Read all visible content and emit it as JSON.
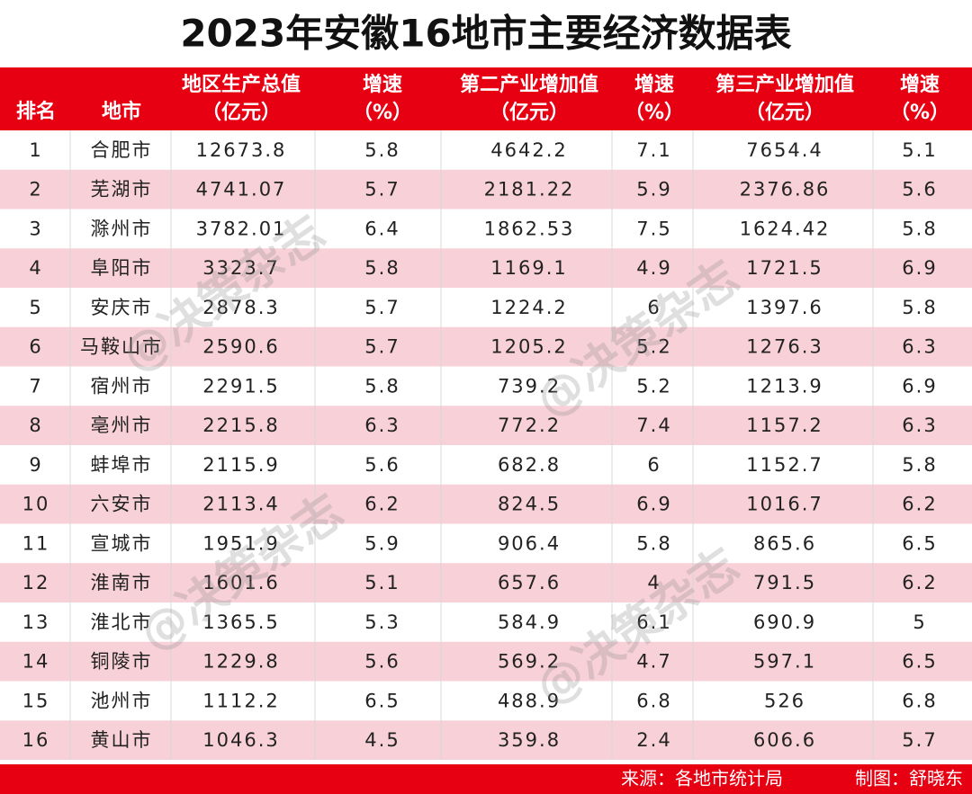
{
  "title": "2023年安徽16地市主要经济数据表",
  "table": {
    "headers": [
      [
        "排名"
      ],
      [
        "地市"
      ],
      [
        "地区生产总值",
        "（亿元）"
      ],
      [
        "增速",
        "（%）"
      ],
      [
        "第二产业增加值",
        "（亿元）"
      ],
      [
        "增速",
        "（%）"
      ],
      [
        "第三产业增加值",
        "（亿元）"
      ],
      [
        "增速",
        "（%）"
      ]
    ],
    "rows": [
      [
        1,
        "合肥市",
        12673.8,
        5.8,
        4642.2,
        7.1,
        7654.4,
        5.1
      ],
      [
        2,
        "芜湖市",
        4741.07,
        5.7,
        2181.22,
        5.9,
        2376.86,
        5.6
      ],
      [
        3,
        "滁州市",
        3782.01,
        6.4,
        1862.53,
        7.5,
        1624.42,
        5.8
      ],
      [
        4,
        "阜阳市",
        3323.7,
        5.8,
        1169.1,
        4.9,
        1721.5,
        6.9
      ],
      [
        5,
        "安庆市",
        2878.3,
        5.7,
        1224.2,
        6,
        1397.6,
        5.8
      ],
      [
        6,
        "马鞍山市",
        2590.6,
        5.7,
        1205.2,
        5.2,
        1276.3,
        6.3
      ],
      [
        7,
        "宿州市",
        2291.5,
        5.8,
        739.2,
        5.2,
        1213.9,
        6.9
      ],
      [
        8,
        "亳州市",
        2215.8,
        6.3,
        772.2,
        7.4,
        1157.2,
        6.3
      ],
      [
        9,
        "蚌埠市",
        2115.9,
        5.6,
        682.8,
        6,
        1152.7,
        5.8
      ],
      [
        10,
        "六安市",
        2113.4,
        6.2,
        824.5,
        6.9,
        1016.7,
        6.2
      ],
      [
        11,
        "宣城市",
        1951.9,
        5.9,
        906.4,
        5.8,
        865.6,
        6.5
      ],
      [
        12,
        "淮南市",
        1601.6,
        5.1,
        657.6,
        4,
        791.5,
        6.2
      ],
      [
        13,
        "淮北市",
        1365.5,
        5.3,
        584.9,
        6.1,
        690.9,
        5
      ],
      [
        14,
        "铜陵市",
        1229.8,
        5.6,
        569.2,
        4.7,
        597.1,
        6.5
      ],
      [
        15,
        "池州市",
        1112.2,
        6.5,
        488.9,
        6.8,
        526,
        6.8
      ],
      [
        16,
        "黄山市",
        1046.3,
        4.5,
        359.8,
        2.4,
        606.6,
        5.7
      ]
    ]
  },
  "footer": {
    "source": "来源：各地市统计局",
    "credit": "制图：舒晓东"
  },
  "watermark": "@决策杂志"
}
